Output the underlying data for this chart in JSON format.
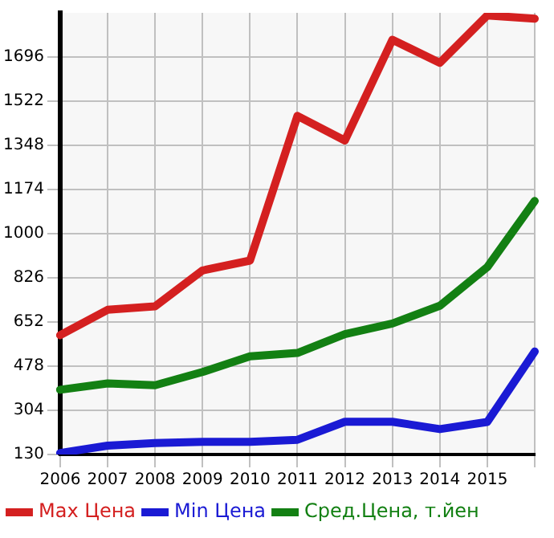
{
  "chart_data": {
    "type": "line",
    "categories": [
      "2006",
      "2007",
      "2008",
      "2009",
      "2010",
      "2011",
      "2012",
      "2013",
      "2014",
      "2015",
      null
    ],
    "series": [
      {
        "name": "Max Цена",
        "color": "#d42020",
        "values": [
          600,
          700,
          714,
          855,
          894,
          1464,
          1367,
          1764,
          1673,
          1860,
          1847
        ]
      },
      {
        "name": "Min Цена",
        "color": "#1a1ad4",
        "values": [
          136,
          165,
          175,
          180,
          180,
          188,
          259,
          259,
          230,
          258,
          536
        ]
      },
      {
        "name": "Сред.Цена, т.йен",
        "color": "#138013",
        "values": [
          385,
          410,
          403,
          455,
          517,
          530,
          604,
          646,
          716,
          868,
          1129
        ]
      }
    ],
    "ylim": [
      130,
      1870
    ],
    "yticks": [
      130,
      304,
      478,
      652,
      826,
      1000,
      1174,
      1348,
      1522,
      1696
    ],
    "grid": true,
    "legend": "bottom",
    "marker": "none",
    "line_style": "solid"
  }
}
